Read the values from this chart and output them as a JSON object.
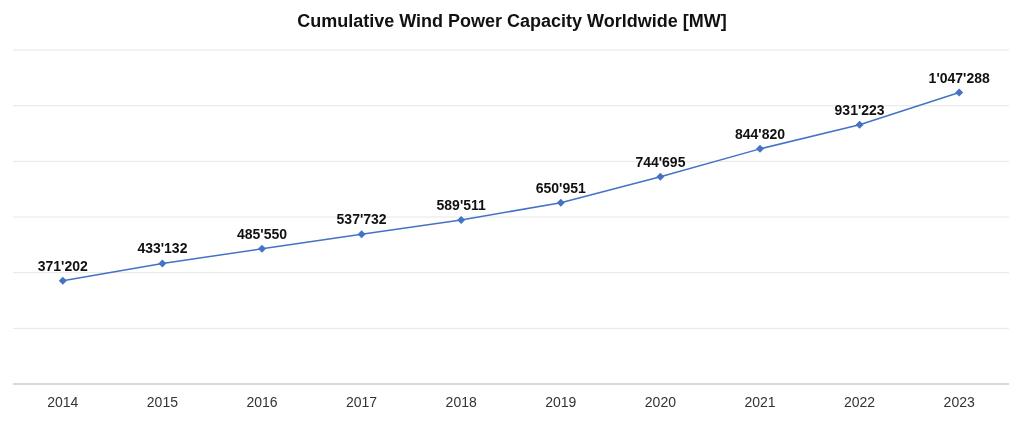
{
  "chart_data": {
    "type": "line",
    "title": "Cumulative Wind Power Capacity Worldwide [MW]",
    "categories": [
      "2014",
      "2015",
      "2016",
      "2017",
      "2018",
      "2019",
      "2020",
      "2021",
      "2022",
      "2023"
    ],
    "series": [
      {
        "color": "#4472c4",
        "values": [
          371202,
          433132,
          485550,
          537732,
          589511,
          650951,
          744695,
          844820,
          931223,
          1047288
        ],
        "value_labels": [
          "371'202",
          "433'132",
          "485'550",
          "537'732",
          "589'511",
          "650'951",
          "744'695",
          "844'820",
          "931'223",
          "1'047'288"
        ]
      }
    ],
    "ylim": [
      0,
      1200000
    ],
    "yticks": [
      {
        "value": 0,
        "label": null
      },
      {
        "value": 200000,
        "label": null
      },
      {
        "value": 400000,
        "label": null
      },
      {
        "value": 600000,
        "label": null
      },
      {
        "value": 800000,
        "label": null
      },
      {
        "value": 1000000,
        "label": null
      },
      {
        "value": 1200000,
        "label": null
      }
    ],
    "tick_labels": "x",
    "grid": "y",
    "marker": "diamond",
    "line_style": "solid"
  }
}
